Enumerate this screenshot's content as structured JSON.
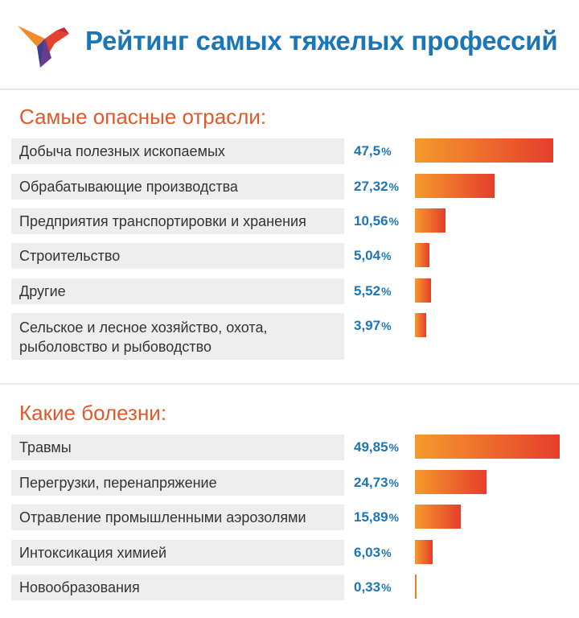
{
  "header": {
    "title": "Рейтинг самых тяжелых профессий",
    "logo_icon": "bird-logo-icon"
  },
  "colors": {
    "title": "#1b76b8",
    "section_title": "#e2582b",
    "value": "#1d76b4",
    "bar_start": "#f59a2c",
    "bar_end": "#e53e2c",
    "label_bg": "#eeeeee"
  },
  "sections": [
    {
      "title": "Самые опасные отрасли:",
      "chart_data": {
        "type": "bar",
        "orientation": "horizontal",
        "unit": "%",
        "categories": [
          "Добыча полезных ископаемых",
          "Обрабатывающие производства",
          "Предприятия транспортировки и хранения",
          "Строительство",
          "Другие",
          "Сельское и лесное хозяйство, охота, рыболовство и рыбоводство"
        ],
        "values": [
          47.5,
          27.32,
          10.56,
          5.04,
          5.52,
          3.97
        ],
        "value_labels": [
          "47,5",
          "27,32",
          "10,56",
          "5,04",
          "5,52",
          "3,97"
        ]
      }
    },
    {
      "title": "Какие болезни:",
      "chart_data": {
        "type": "bar",
        "orientation": "horizontal",
        "unit": "%",
        "categories": [
          "Травмы",
          "Перегрузки, перенапряжение",
          "Отравление промышленными аэрозолями",
          "Интоксикация химией",
          "Новообразования"
        ],
        "values": [
          49.85,
          24.73,
          15.89,
          6.03,
          0.33
        ],
        "value_labels": [
          "49,85",
          "24,73",
          "15,89",
          "6,03",
          "0,33"
        ]
      }
    }
  ]
}
